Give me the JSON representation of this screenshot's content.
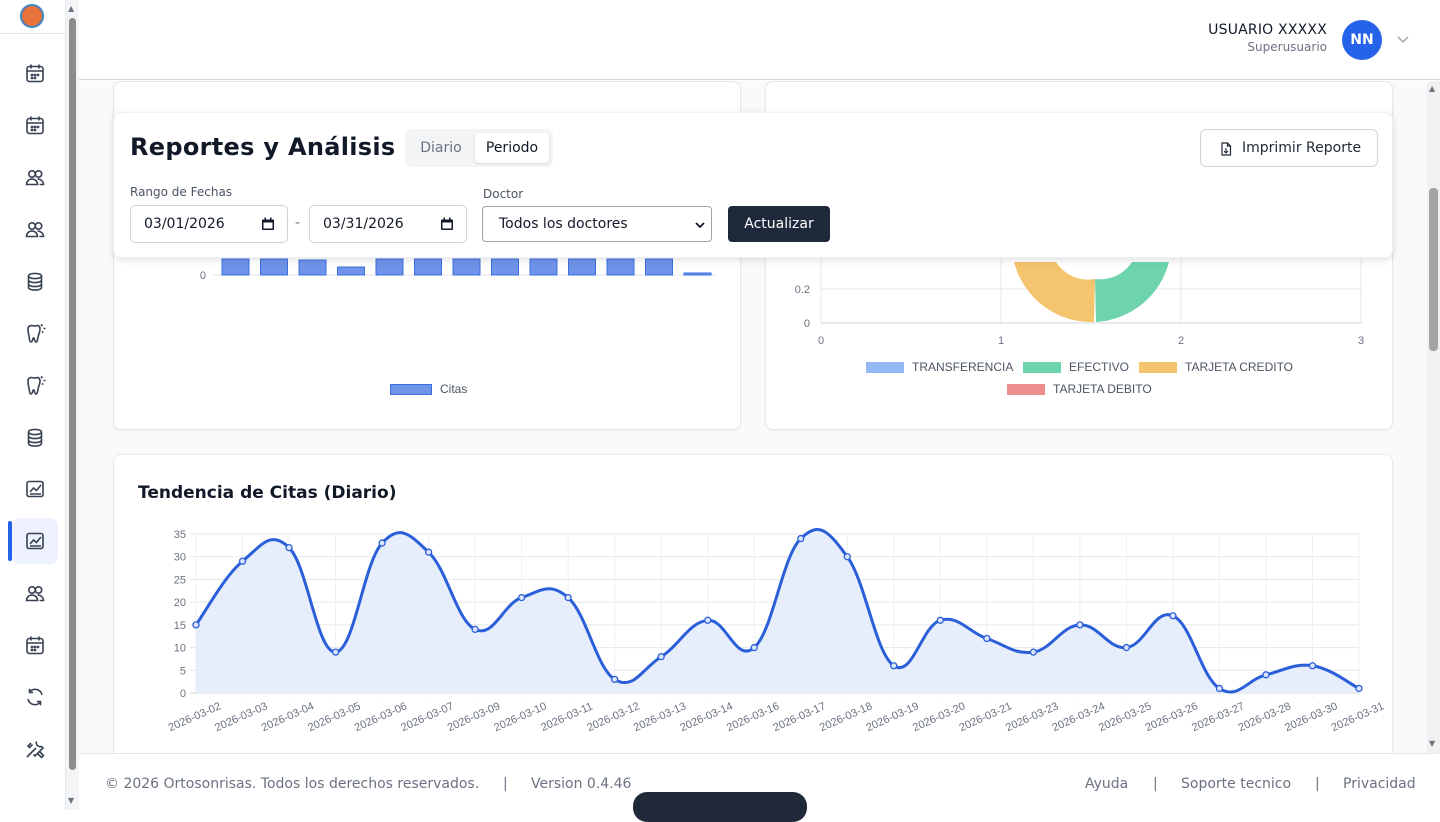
{
  "header": {
    "user_name": "USUARIO XXXXX",
    "user_role": "Superusuario",
    "avatar_initials": "NN"
  },
  "sidebar": {
    "items": [
      {
        "icon": "calendar-icon"
      },
      {
        "icon": "calendar-icon"
      },
      {
        "icon": "users-icon"
      },
      {
        "icon": "users-icon"
      },
      {
        "icon": "coins-icon"
      },
      {
        "icon": "tooth-icon"
      },
      {
        "icon": "tooth-icon"
      },
      {
        "icon": "coins-icon"
      },
      {
        "icon": "chart-icon"
      },
      {
        "icon": "chart-icon",
        "active": true
      },
      {
        "icon": "users-icon"
      },
      {
        "icon": "calendar-icon"
      },
      {
        "icon": "refresh-icon"
      },
      {
        "icon": "tools-icon"
      }
    ]
  },
  "filters": {
    "title": "Reportes y Análisis",
    "tabs": [
      "Diario",
      "Periodo"
    ],
    "active_tab": "Periodo",
    "print_label": "Imprimir Reporte",
    "date_range_label": "Rango de Fechas",
    "date_from": "03/01/2026",
    "date_to": "03/31/2026",
    "date_separator": "-",
    "doctor_label": "Doctor",
    "doctor_value": "Todos los doctores",
    "refresh_label": "Actualizar"
  },
  "citas_chart": {
    "legend": "Citas",
    "y_tick": "0",
    "color": "#6e93e8"
  },
  "payments_chart": {
    "y_ticks": [
      "0",
      "0.2"
    ],
    "x_ticks": [
      "0",
      "1",
      "2",
      "3"
    ],
    "legend": [
      {
        "label": "TRANSFERENCIA",
        "color": "#93b8f4"
      },
      {
        "label": "EFECTIVO",
        "color": "#6ed4ac"
      },
      {
        "label": "TARJETA CREDITO",
        "color": "#f5c46e"
      },
      {
        "label": "TARJETA DEBITO",
        "color": "#ee8f8f"
      }
    ]
  },
  "trend": {
    "title": "Tendencia de Citas (Diario)"
  },
  "chart_data": {
    "type": "line",
    "title": "Tendencia de Citas (Diario)",
    "x": [
      "2026-03-02",
      "2026-03-03",
      "2026-03-04",
      "2026-03-05",
      "2026-03-06",
      "2026-03-07",
      "2026-03-09",
      "2026-03-10",
      "2026-03-11",
      "2026-03-12",
      "2026-03-13",
      "2026-03-14",
      "2026-03-16",
      "2026-03-17",
      "2026-03-18",
      "2026-03-19",
      "2026-03-20",
      "2026-03-21",
      "2026-03-23",
      "2026-03-24",
      "2026-03-25",
      "2026-03-26",
      "2026-03-27",
      "2026-03-28",
      "2026-03-30",
      "2026-03-31"
    ],
    "values": [
      15,
      29,
      32,
      9,
      33,
      31,
      14,
      21,
      21,
      3,
      8,
      16,
      10,
      34,
      30,
      6,
      16,
      12,
      9,
      15,
      10,
      17,
      1,
      4,
      6,
      1
    ],
    "ylim": [
      0,
      35
    ],
    "yticks": [
      0,
      5,
      10,
      15,
      20,
      25,
      30,
      35
    ],
    "grid": true,
    "color": "#2b5fd9",
    "fill": "#e6edfb"
  },
  "footer": {
    "copyright": "© 2026 Ortosonrisas. Todos los derechos reservados.",
    "sep": "|",
    "version": "Version 0.4.46",
    "help": "Ayuda",
    "support": "Soporte tecnico",
    "privacy": "Privacidad"
  }
}
